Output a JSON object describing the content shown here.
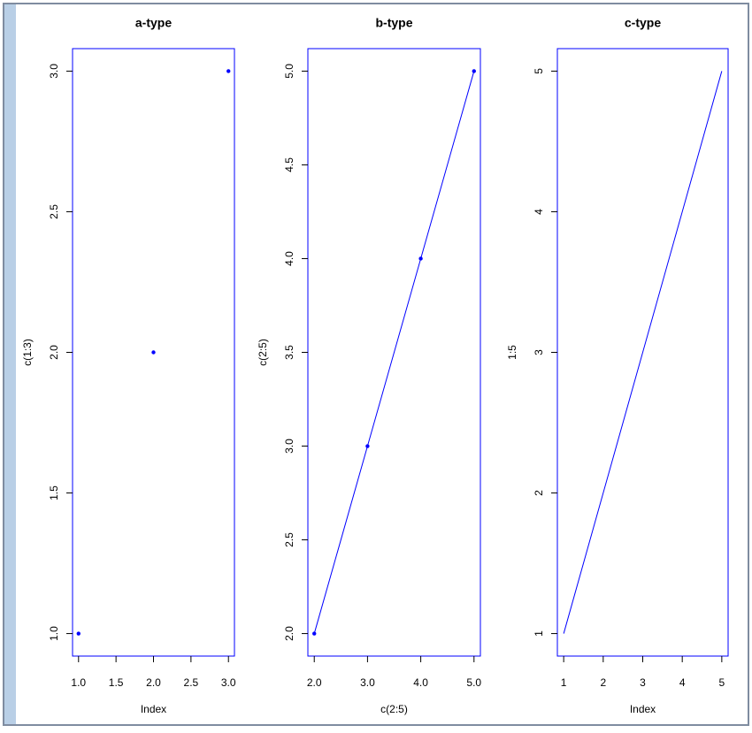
{
  "chart_data": [
    {
      "type": "scatter",
      "title": "a-type",
      "xlabel": "Index",
      "ylabel": "c(1:3)",
      "x": [
        1,
        2,
        3
      ],
      "values": [
        1,
        2,
        3
      ],
      "color": "#0000ff",
      "xlim": [
        0.92,
        3.08
      ],
      "ylim": [
        0.92,
        3.08
      ],
      "xticks": [
        {
          "value": 1,
          "label": "1.0"
        },
        {
          "value": 1.5,
          "label": "1.5"
        },
        {
          "value": 2,
          "label": "2.0"
        },
        {
          "value": 2.5,
          "label": "2.5"
        },
        {
          "value": 3,
          "label": "3.0"
        }
      ],
      "yticks": [
        {
          "value": 1,
          "label": "1.0"
        },
        {
          "value": 1.5,
          "label": "1.5"
        },
        {
          "value": 2,
          "label": "2.0"
        },
        {
          "value": 2.5,
          "label": "2.5"
        },
        {
          "value": 3,
          "label": "3.0"
        }
      ]
    },
    {
      "type": "line",
      "markers": true,
      "title": "b-type",
      "xlabel": "c(2:5)",
      "ylabel": "c(2:5)",
      "x": [
        2,
        3,
        4,
        5
      ],
      "values": [
        2,
        3,
        4,
        5
      ],
      "color": "#0000ff",
      "xlim": [
        1.88,
        5.12
      ],
      "ylim": [
        1.88,
        5.12
      ],
      "xticks": [
        {
          "value": 2,
          "label": "2.0"
        },
        {
          "value": 3,
          "label": "3.0"
        },
        {
          "value": 4,
          "label": "4.0"
        },
        {
          "value": 5,
          "label": "5.0"
        }
      ],
      "yticks": [
        {
          "value": 2,
          "label": "2.0"
        },
        {
          "value": 2.5,
          "label": "2.5"
        },
        {
          "value": 3,
          "label": "3.0"
        },
        {
          "value": 3.5,
          "label": "3.5"
        },
        {
          "value": 4,
          "label": "4.0"
        },
        {
          "value": 4.5,
          "label": "4.5"
        },
        {
          "value": 5,
          "label": "5.0"
        }
      ]
    },
    {
      "type": "line",
      "markers": false,
      "title": "c-type",
      "xlabel": "Index",
      "ylabel": "1:5",
      "x": [
        1,
        2,
        3,
        4,
        5
      ],
      "values": [
        1,
        2,
        3,
        4,
        5
      ],
      "color": "#0000ff",
      "xlim": [
        0.84,
        5.16
      ],
      "ylim": [
        0.84,
        5.16
      ],
      "xticks": [
        1,
        2,
        3,
        4,
        5
      ],
      "yticks": [
        1,
        2,
        3,
        4,
        5
      ]
    }
  ]
}
